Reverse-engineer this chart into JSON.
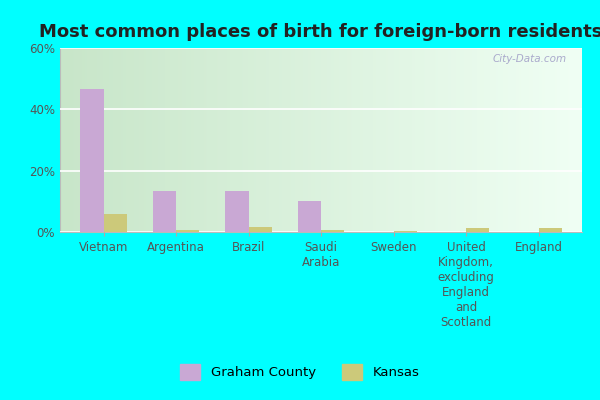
{
  "title": "Most common places of birth for foreign-born residents",
  "categories": [
    "Vietnam",
    "Argentina",
    "Brazil",
    "Saudi\nArabia",
    "Sweden",
    "United\nKingdom,\nexcluding\nEngland\nand\nScotland",
    "England"
  ],
  "graham_county": [
    46.5,
    13.5,
    13.5,
    10.0,
    0.0,
    0.0,
    0.0
  ],
  "kansas": [
    6.0,
    0.5,
    1.5,
    0.5,
    0.2,
    1.2,
    1.2
  ],
  "graham_color": "#c9a8d4",
  "kansas_color": "#ccc97a",
  "ylim": [
    0,
    60
  ],
  "yticks": [
    0,
    20,
    40,
    60
  ],
  "ytick_labels": [
    "0%",
    "20%",
    "40%",
    "60%"
  ],
  "bar_width": 0.32,
  "legend_labels": [
    "Graham County",
    "Kansas"
  ],
  "watermark": "City-Data.com",
  "title_fontsize": 13,
  "label_fontsize": 8.5,
  "fig_facecolor": "#00ffff",
  "plot_bg_left": "#c8e6c9",
  "plot_bg_right": "#f0fff4"
}
